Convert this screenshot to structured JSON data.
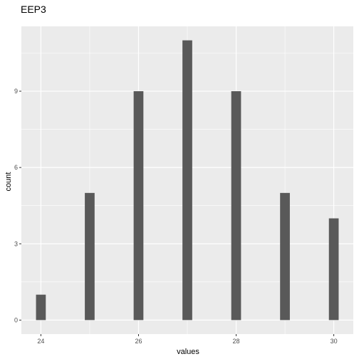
{
  "chart_data": {
    "type": "bar",
    "title": "EEP3",
    "xlabel": "values",
    "ylabel": "count",
    "x": [
      24,
      25,
      26,
      27,
      28,
      29,
      30
    ],
    "values": [
      1,
      5,
      9,
      11,
      9,
      5,
      4
    ],
    "xlim": [
      23.6,
      30.4
    ],
    "ylim": [
      -0.55,
      11.55
    ],
    "x_ticks": [
      24,
      26,
      28,
      30
    ],
    "y_ticks": [
      0,
      3,
      6,
      9
    ],
    "grid": true,
    "panel_background": "#ebebeb",
    "bar_color": "#595959",
    "grid_color": "#ffffff"
  }
}
